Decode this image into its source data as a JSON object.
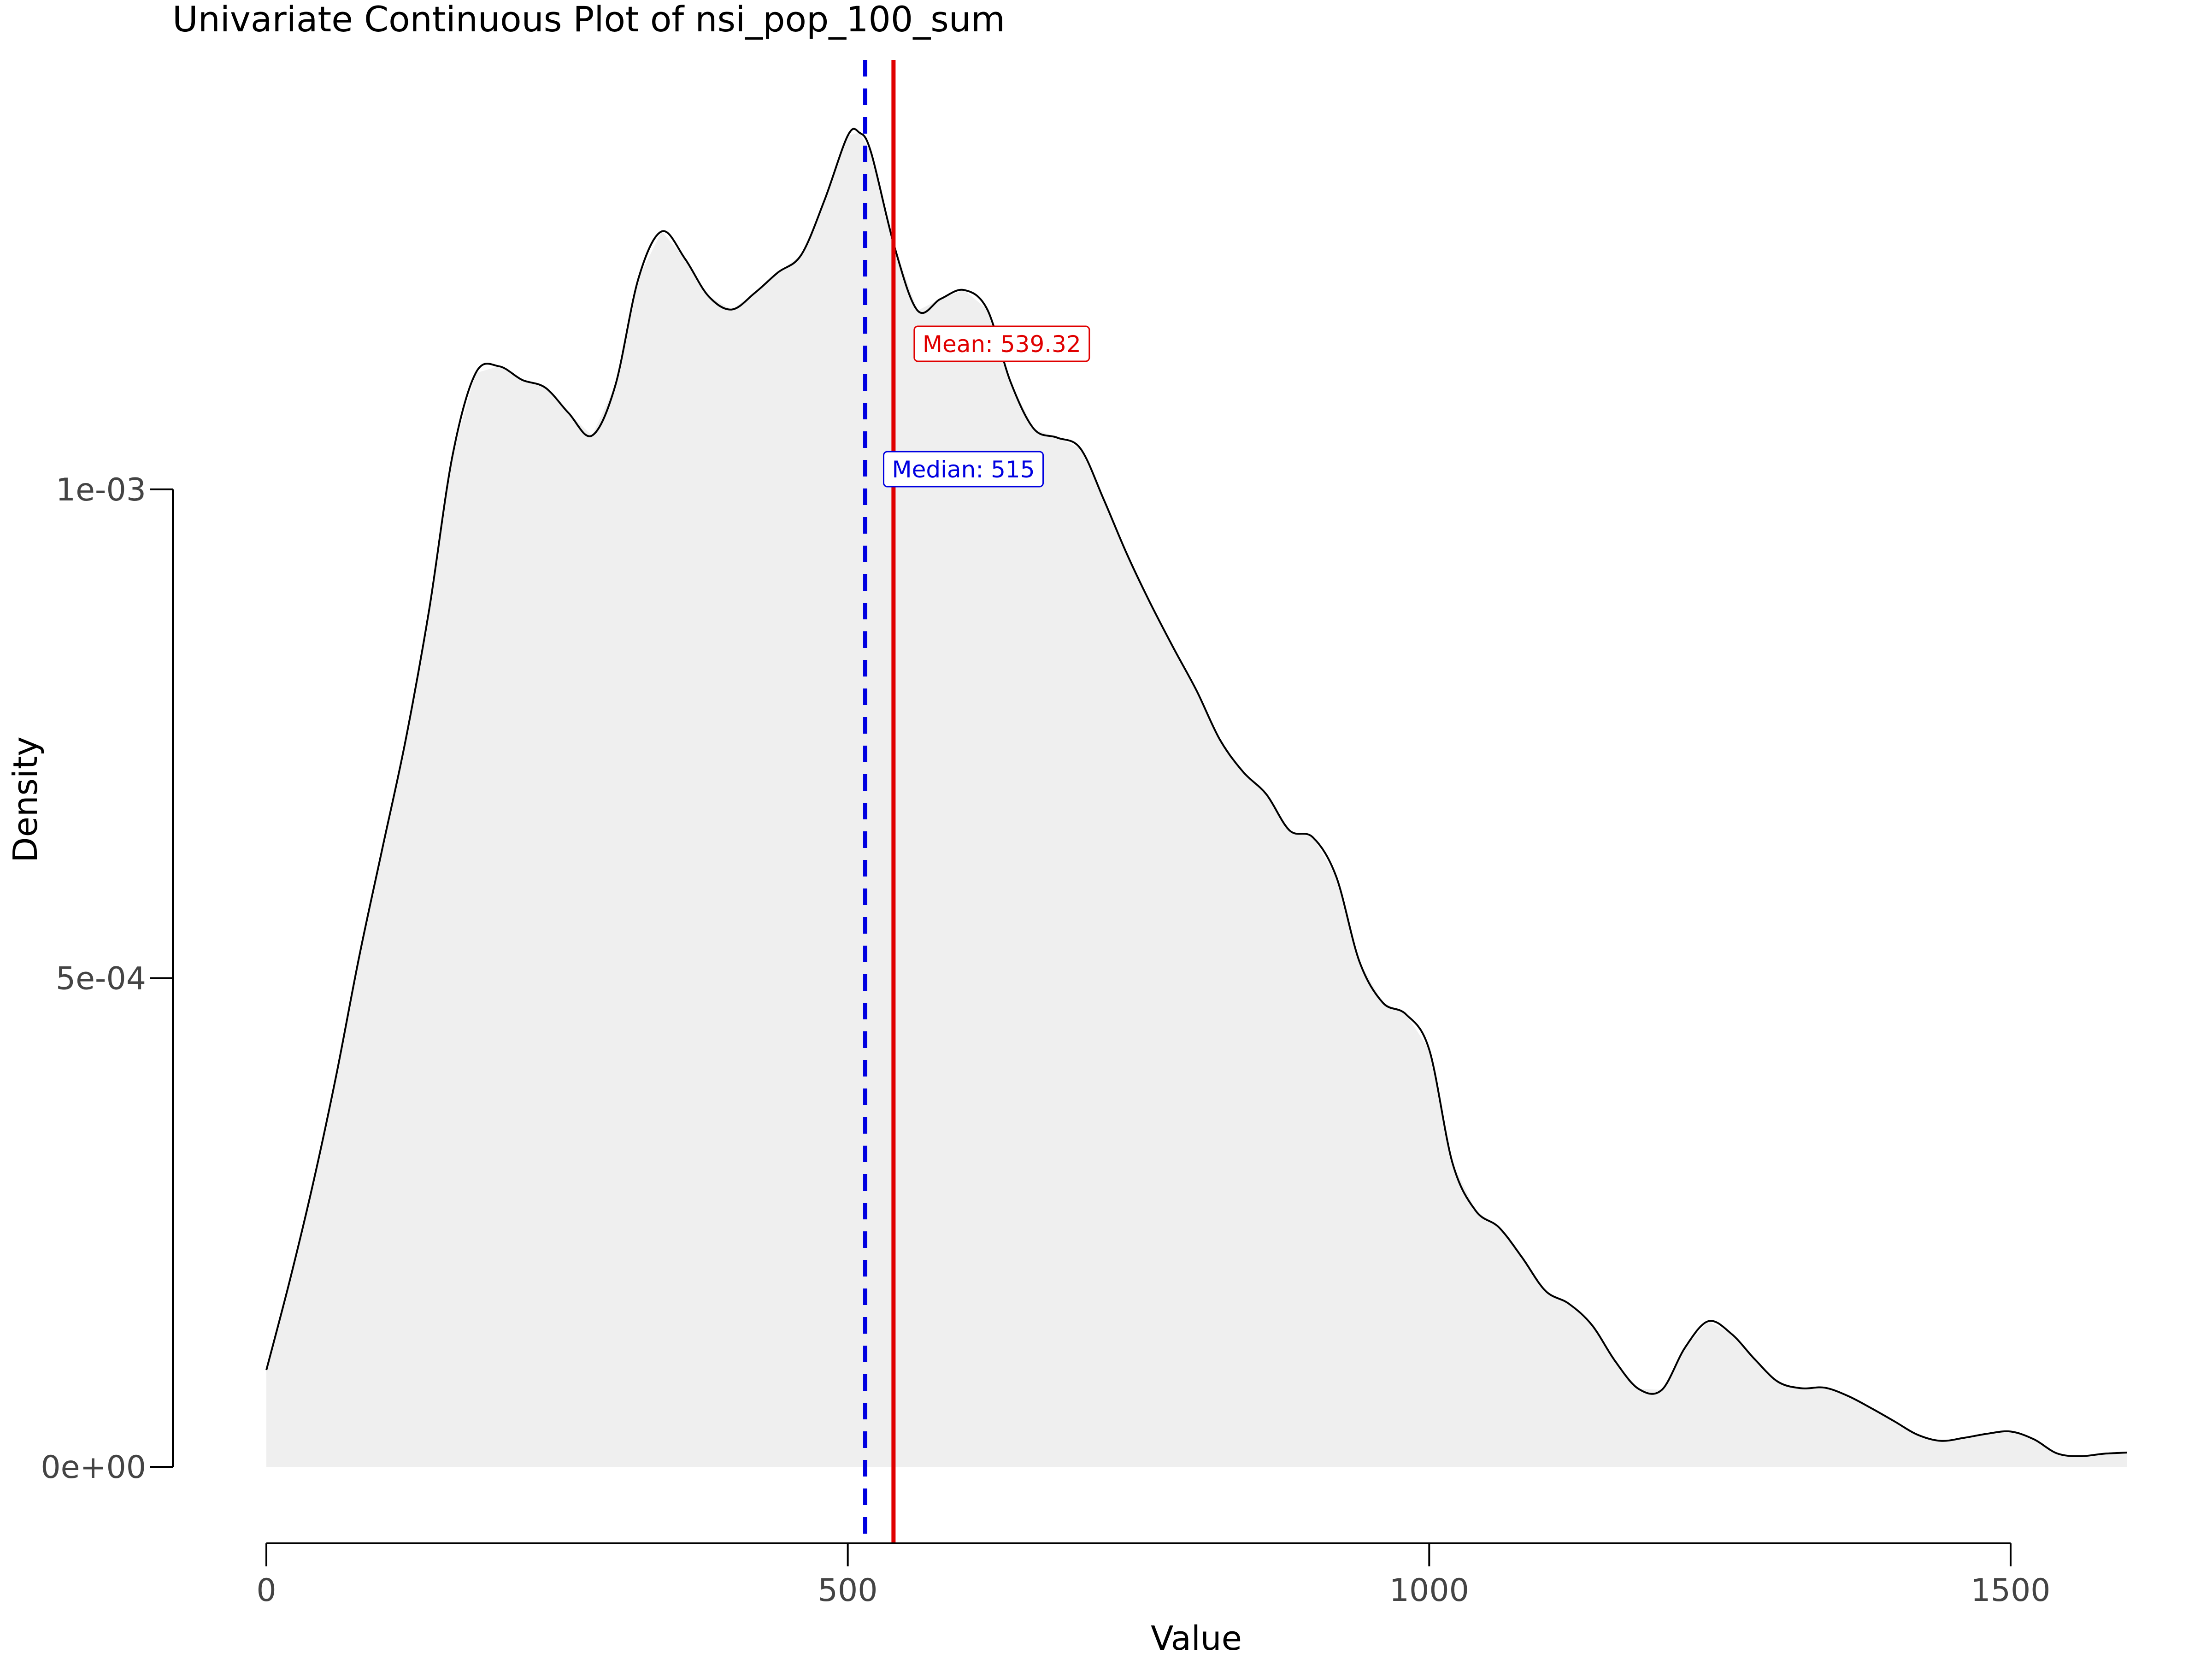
{
  "chart_data": {
    "type": "area",
    "title": "Univariate Continuous Plot of nsi_pop_100_sum",
    "xlabel": "Value",
    "ylabel": "Density",
    "xlim": [
      0,
      1600
    ],
    "ylim": [
      0,
      0.001392
    ],
    "x_ticks": [
      0,
      500,
      1000,
      1500
    ],
    "x_tick_labels": [
      "0",
      "500",
      "1000",
      "1500"
    ],
    "y_ticks": [
      0,
      0.0005,
      0.001
    ],
    "y_tick_labels": [
      "0e+00",
      "5e-04",
      "1e-03"
    ],
    "grid": false,
    "legend": "none",
    "fill_color": "#efefef",
    "line_color": "#000000",
    "density": {
      "x": [
        0,
        20,
        40,
        60,
        80,
        100,
        120,
        140,
        160,
        180,
        200,
        220,
        240,
        260,
        280,
        300,
        320,
        340,
        360,
        380,
        400,
        420,
        440,
        460,
        480,
        500,
        510,
        520,
        540,
        560,
        580,
        600,
        620,
        640,
        660,
        680,
        700,
        720,
        740,
        760,
        780,
        800,
        820,
        840,
        860,
        880,
        900,
        920,
        940,
        960,
        980,
        1000,
        1020,
        1040,
        1060,
        1080,
        1100,
        1120,
        1140,
        1160,
        1180,
        1200,
        1220,
        1240,
        1260,
        1280,
        1300,
        1320,
        1340,
        1360,
        1380,
        1400,
        1420,
        1440,
        1460,
        1480,
        1500,
        1520,
        1540,
        1560,
        1580,
        1600
      ],
      "y": [
        9.9e-05,
        0.00019,
        0.000289,
        0.0004,
        0.000523,
        0.000634,
        0.000745,
        0.000877,
        0.001034,
        0.001119,
        0.001126,
        0.001112,
        0.001104,
        0.001078,
        0.001055,
        0.001106,
        0.001216,
        0.001264,
        0.001236,
        0.001198,
        0.001184,
        0.001201,
        0.001222,
        0.00124,
        0.001296,
        0.001362,
        0.001365,
        0.001345,
        0.001249,
        0.001183,
        0.001195,
        0.001204,
        0.001184,
        0.00111,
        0.001062,
        0.001053,
        0.001042,
        0.00099,
        0.000934,
        0.000884,
        0.000838,
        0.000794,
        0.000744,
        0.000711,
        0.000688,
        0.000651,
        0.000644,
        0.000604,
        0.000517,
        0.000475,
        0.000463,
        0.000427,
        0.000311,
        0.000262,
        0.000245,
        0.000214,
        0.00018,
        0.000167,
        0.000145,
        0.000108,
        7.98e-05,
        7.87e-05,
        0.000122,
        0.000149,
        0.000136,
        0.00011,
        8.7e-05,
        8.04e-05,
        8.1e-05,
        7.26e-05,
        6.01e-05,
        4.66e-05,
        3.28e-05,
        2.66e-05,
        2.97e-05,
        3.39e-05,
        3.61e-05,
        2.82e-05,
        1.37e-05,
        1.09e-05,
        1.34e-05,
        1.46e-05
      ]
    },
    "mean": {
      "value": 539.32,
      "label": "Mean: 539.32",
      "color": "#e00000",
      "style": "solid"
    },
    "median": {
      "value": 515,
      "label": "Median: 515",
      "color": "#0000e0",
      "style": "dashed"
    }
  }
}
